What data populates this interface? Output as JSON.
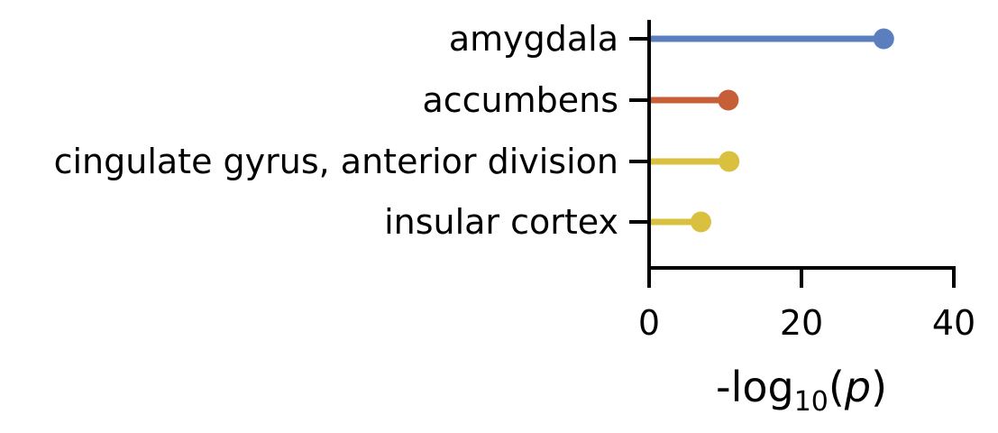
{
  "chart_data": {
    "type": "lollipop",
    "orientation": "horizontal",
    "categories": [
      "amygdala",
      "accumbens",
      "cingulate gyrus, anterior division",
      "insular cortex"
    ],
    "values": [
      30.8,
      10.4,
      10.5,
      6.8
    ],
    "colors": [
      "#5b7fbe",
      "#c65f38",
      "#d9c03f",
      "#d9c03f"
    ],
    "xlabel": {
      "prefix": "-log",
      "subscript": "10",
      "open": "(",
      "var": "p",
      "close": ")"
    },
    "xlim": [
      0,
      40
    ],
    "xticks": [
      0,
      20,
      40
    ],
    "grid": false
  }
}
